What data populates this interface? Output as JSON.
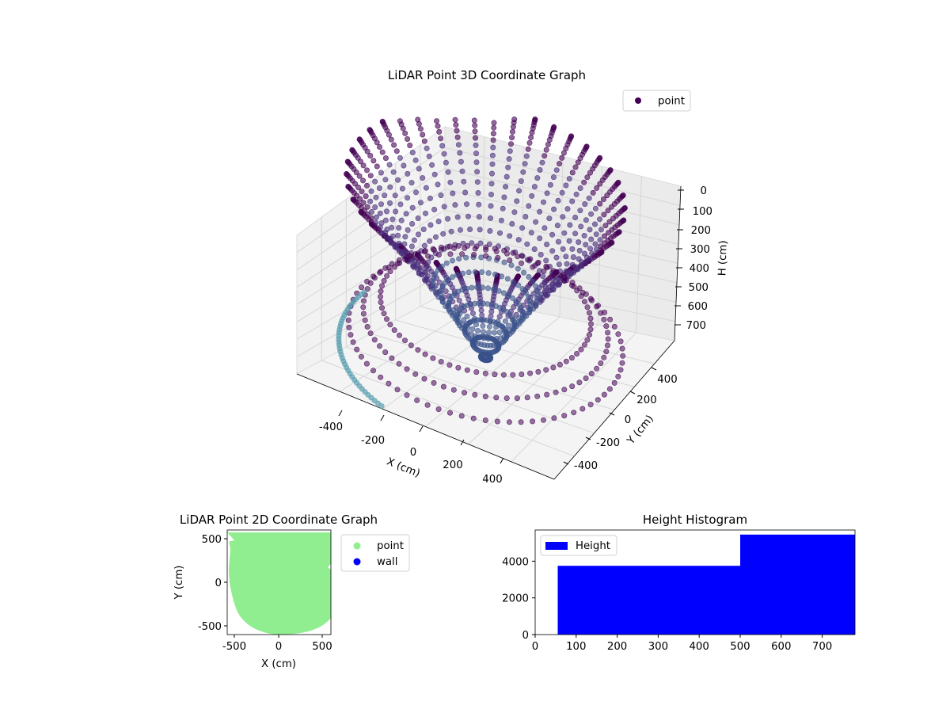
{
  "colors": {
    "point3d_top": "#440154",
    "point3d_mid": "#3b528b",
    "point3d_low": "#5b9fb0",
    "point2d": "#90ee90",
    "wall": "#0000ff",
    "hist": "#0000ff"
  },
  "chart_data": [
    {
      "type": "scatter",
      "title": "LiDAR Point 3D Coordinate Graph",
      "xlabel": "X (cm)",
      "ylabel": "Y (cm)",
      "zlabel": "H (cm)",
      "x_ticks": [
        "-400",
        "-200",
        "0",
        "200",
        "400"
      ],
      "y_ticks": [
        "-400",
        "-200",
        "0",
        "200",
        "400"
      ],
      "z_ticks": [
        "0",
        "100",
        "200",
        "300",
        "400",
        "500",
        "600",
        "700"
      ],
      "xlim": [
        -580,
        580
      ],
      "ylim": [
        -580,
        580
      ],
      "zlim": [
        0,
        780
      ],
      "z_inverted": true,
      "legend": {
        "placement": "top-right",
        "entries": [
          {
            "name": "point",
            "color": "#440154"
          }
        ]
      },
      "description": "Cylindrical/bowl-shaped point cloud: ~42 vertical scan lines descending from H≈0 at the rim to H≈780 at the center, plus ring layers around radius 420–560 cm"
    },
    {
      "type": "scatter",
      "title": "LiDAR Point 2D Coordinate Graph",
      "xlabel": "X (cm)",
      "ylabel": "Y (cm)",
      "x_ticks": [
        "-500",
        "0",
        "500"
      ],
      "y_ticks": [
        "-500",
        "0",
        "500"
      ],
      "xlim": [
        -590,
        590
      ],
      "ylim": [
        -600,
        600
      ],
      "legend": {
        "placement": "outside-right",
        "entries": [
          {
            "name": "point",
            "color": "#90ee90"
          },
          {
            "name": "wall",
            "color": "#0000ff"
          }
        ]
      }
    },
    {
      "type": "bar",
      "title": "Height Histogram",
      "x_ticks": [
        "0",
        "100",
        "200",
        "300",
        "400",
        "500",
        "600",
        "700"
      ],
      "y_ticks": [
        "0",
        "2000",
        "4000"
      ],
      "xlim": [
        0,
        780
      ],
      "ylim": [
        0,
        5700
      ],
      "bins": [
        {
          "from": 55,
          "to": 500,
          "count": 3750
        },
        {
          "from": 500,
          "to": 780,
          "count": 5450
        }
      ],
      "legend": {
        "placement": "top-left",
        "entries": [
          {
            "name": "Height",
            "color": "#0000ff"
          }
        ]
      }
    }
  ]
}
